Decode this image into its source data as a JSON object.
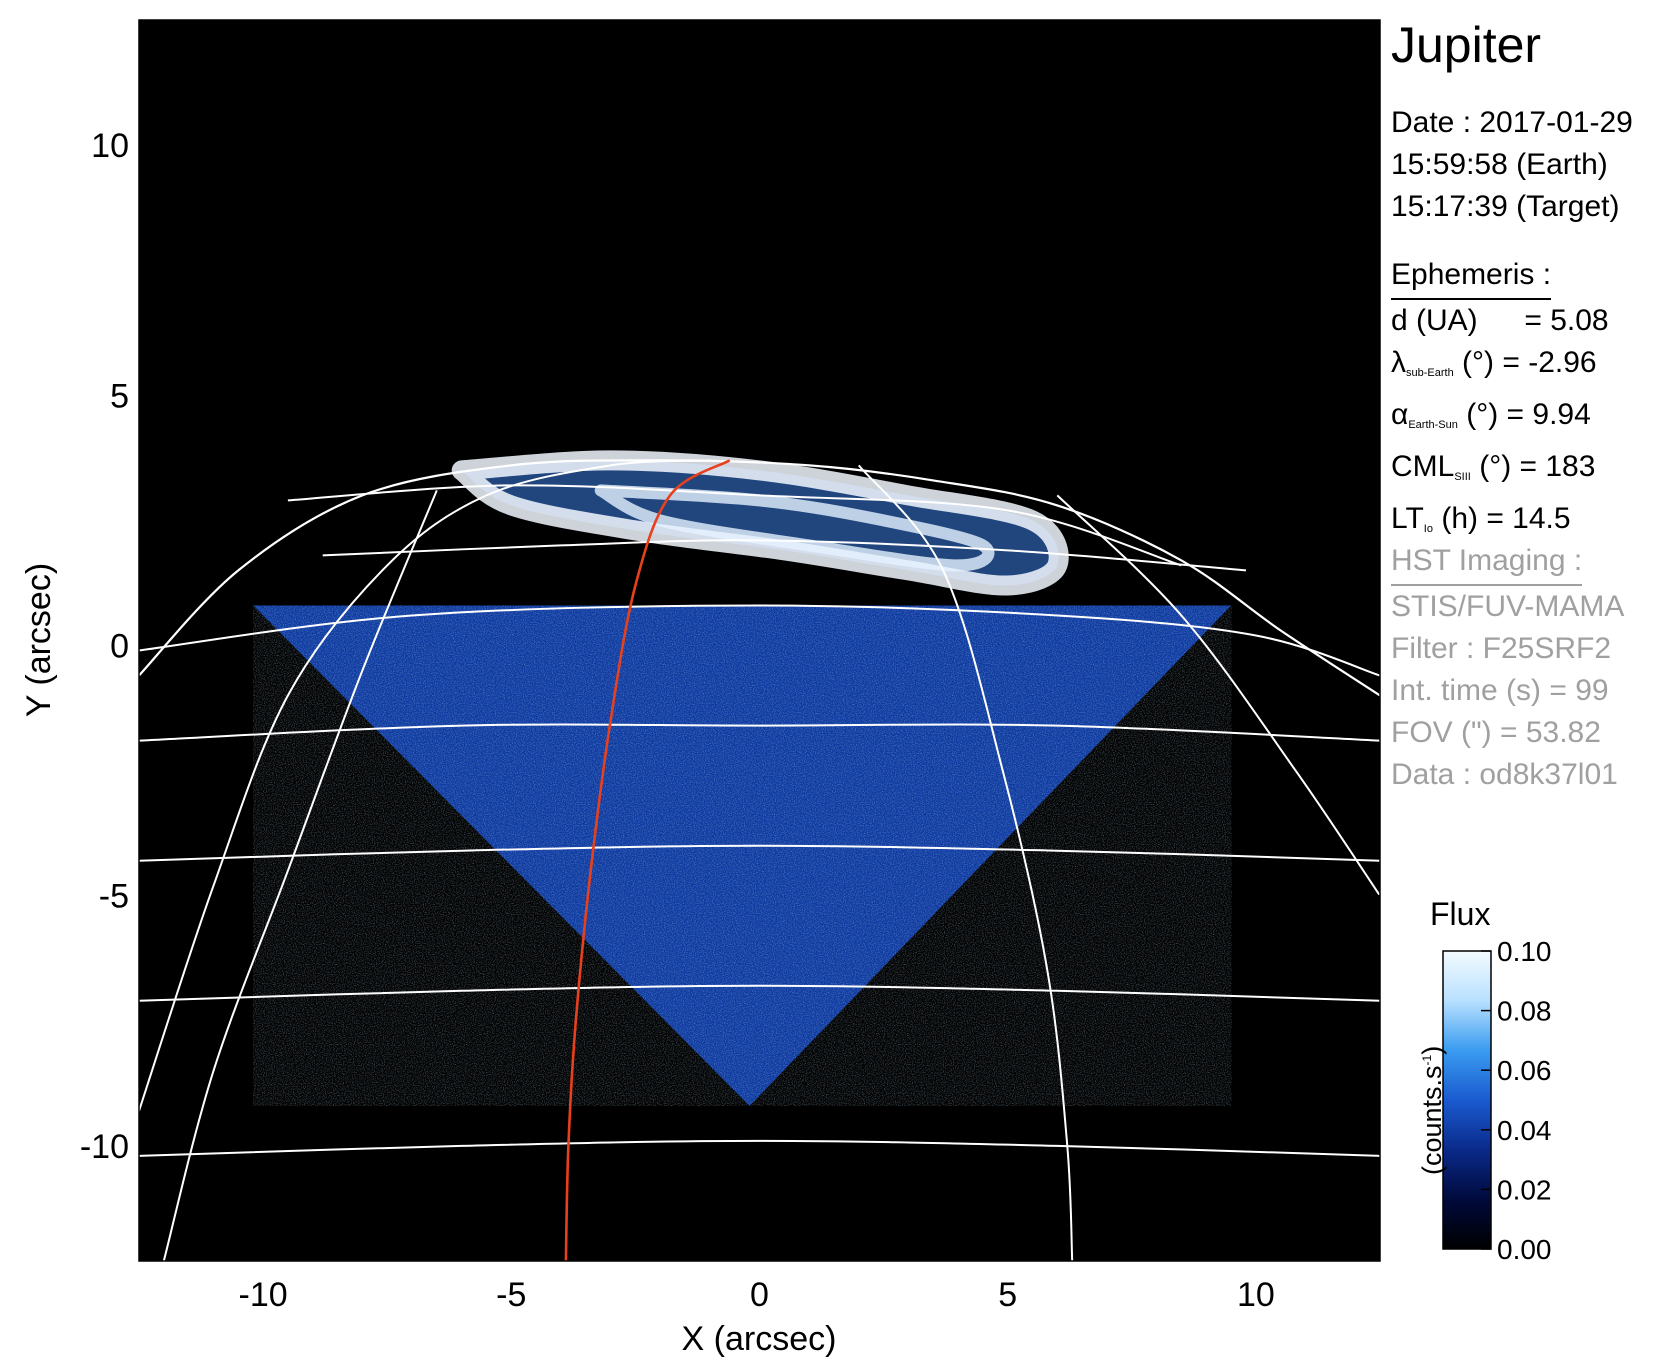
{
  "title": "Jupiter",
  "date_block": {
    "date_line": "Date : 2017-01-29",
    "earth_line": "15:59:58 (Earth)",
    "target_line": "15:17:39 (Target)"
  },
  "ephemeris": {
    "heading": "Ephemeris :",
    "d_label": "d (UA)",
    "d_value": "= 5.08",
    "lat_symbol": "λ",
    "lat_sub": "sub-Earth",
    "lat_value": "(°) = -2.96",
    "phase_symbol": "α",
    "phase_sub": "Earth-Sun",
    "phase_value": "(°) = 9.94",
    "cml_symbol": "CML",
    "cml_sub": "SIII",
    "cml_value": "(°) = 183",
    "lt_symbol": "LT",
    "lt_sub": "Io",
    "lt_value": "(h) = 14.5"
  },
  "hst": {
    "heading": "HST Imaging :",
    "instrument": "STIS/FUV-MAMA",
    "filter": "Filter : F25SRF2",
    "int_time": "Int. time (s) = 99",
    "fov": "FOV (\") = 53.82",
    "data": "Data : od8k37l01"
  },
  "colorbar": {
    "title": "Flux",
    "unit": "(counts.s",
    "unit_sup": "-1",
    "unit_close": ")",
    "min": 0,
    "max": 0.1,
    "ticks": [
      "0.00",
      "0.02",
      "0.04",
      "0.06",
      "0.08",
      "0.10"
    ],
    "colors": [
      "#000000",
      "#000a3c",
      "#0a2a8a",
      "#1a5bd0",
      "#3a9cf0",
      "#b8e0ff",
      "#f4fbff"
    ]
  },
  "chart_data": {
    "type": "heatmap",
    "xlabel": "X (arcsec)",
    "ylabel": "Y (arcsec)",
    "xlim": [
      -12.5,
      12.5
    ],
    "ylim": [
      -12.3,
      12.5
    ],
    "x_ticks": [
      "-10",
      "-5",
      "0",
      "5",
      "10"
    ],
    "x_tick_values": [
      -10,
      -5,
      0,
      5,
      10
    ],
    "y_ticks": [
      "10",
      "5",
      "0",
      "-5",
      "-10"
    ],
    "y_tick_values": [
      10,
      5,
      0,
      -5,
      -10
    ],
    "background_color": "#000000",
    "grid_color": "#ffffff",
    "meridian_color": "#e8401c",
    "fov_vertices": [
      [
        -10.2,
        0.8
      ],
      [
        9.5,
        0.8
      ],
      [
        -0.2,
        -9.2
      ]
    ],
    "limb_points": [
      [
        -12.5,
        -0.6
      ],
      [
        -10.5,
        1.5
      ],
      [
        -8.0,
        3.0
      ],
      [
        -5.0,
        3.6
      ],
      [
        -2.0,
        3.7
      ],
      [
        1.0,
        3.6
      ],
      [
        3.5,
        3.3
      ],
      [
        6.0,
        2.8
      ],
      [
        8.5,
        1.7
      ],
      [
        10.5,
        0.3
      ],
      [
        12.5,
        -1.0
      ]
    ],
    "parallels": [
      [
        [
          -12.5,
          -0.1
        ],
        [
          -7.0,
          0.6
        ],
        [
          0.0,
          0.8
        ],
        [
          6.0,
          0.6
        ],
        [
          10.0,
          0.2
        ],
        [
          12.5,
          -0.6
        ]
      ],
      [
        [
          -12.5,
          -1.9
        ],
        [
          -6.0,
          -1.6
        ],
        [
          0.0,
          -1.6
        ],
        [
          6.0,
          -1.6
        ],
        [
          12.5,
          -1.9
        ]
      ],
      [
        [
          -12.5,
          -4.3
        ],
        [
          -6.0,
          -4.1
        ],
        [
          0.0,
          -4.0
        ],
        [
          6.0,
          -4.1
        ],
        [
          12.5,
          -4.3
        ]
      ],
      [
        [
          -12.5,
          -7.1
        ],
        [
          -6.0,
          -6.9
        ],
        [
          0.0,
          -6.8
        ],
        [
          6.0,
          -6.9
        ],
        [
          12.5,
          -7.1
        ]
      ],
      [
        [
          -12.5,
          -10.2
        ],
        [
          -6.0,
          -10.0
        ],
        [
          0.0,
          -9.9
        ],
        [
          6.0,
          -10.0
        ],
        [
          12.5,
          -10.2
        ]
      ],
      [
        [
          -9.5,
          2.9
        ],
        [
          -5.0,
          3.2
        ],
        [
          0.0,
          3.0
        ],
        [
          5.0,
          2.7
        ],
        [
          8.5,
          1.6
        ]
      ],
      [
        [
          -8.8,
          1.8
        ],
        [
          -4.0,
          2.0
        ],
        [
          0.0,
          2.1
        ],
        [
          5.0,
          1.9
        ],
        [
          9.8,
          1.5
        ]
      ]
    ],
    "meridians": [
      [
        [
          -12.5,
          -9.3
        ],
        [
          -11.0,
          -4.8
        ],
        [
          -9.5,
          -1.0
        ],
        [
          -7.5,
          1.6
        ],
        [
          -5.5,
          3.0
        ],
        [
          -3.0,
          3.6
        ],
        [
          -1.0,
          3.7
        ]
      ],
      [
        [
          -6.5,
          3.1
        ],
        [
          -8.0,
          -0.5
        ],
        [
          -9.5,
          -4.5
        ],
        [
          -11.0,
          -8.5
        ],
        [
          -12.0,
          -12.3
        ]
      ],
      [
        [
          2.0,
          3.6
        ],
        [
          3.7,
          1.5
        ],
        [
          4.9,
          -2.5
        ],
        [
          5.8,
          -6.5
        ],
        [
          6.2,
          -10.0
        ],
        [
          6.3,
          -12.3
        ]
      ],
      [
        [
          6.0,
          3.0
        ],
        [
          8.5,
          0.6
        ],
        [
          10.8,
          -2.5
        ],
        [
          12.5,
          -5.0
        ]
      ]
    ],
    "central_meridian": [
      [
        -0.6,
        3.7
      ],
      [
        -1.8,
        3.0
      ],
      [
        -2.5,
        1.2
      ],
      [
        -3.0,
        -1.5
      ],
      [
        -3.4,
        -4.5
      ],
      [
        -3.7,
        -7.5
      ],
      [
        -3.85,
        -10.0
      ],
      [
        -3.9,
        -12.3
      ]
    ],
    "auroral_oval": [
      [
        -6.0,
        3.5
      ],
      [
        -3.0,
        3.7
      ],
      [
        0.0,
        3.5
      ],
      [
        3.0,
        3.0
      ],
      [
        5.5,
        2.5
      ],
      [
        6.0,
        1.6
      ],
      [
        5.0,
        1.2
      ],
      [
        3.0,
        1.5
      ],
      [
        0.5,
        1.9
      ],
      [
        -2.5,
        2.3
      ],
      [
        -5.0,
        2.8
      ],
      [
        -6.0,
        3.5
      ]
    ],
    "inner_arc": [
      [
        -3.2,
        3.1
      ],
      [
        0.0,
        2.9
      ],
      [
        2.5,
        2.5
      ],
      [
        4.5,
        2.0
      ],
      [
        4.0,
        1.6
      ],
      [
        1.0,
        2.0
      ],
      [
        -2.0,
        2.5
      ],
      [
        -3.2,
        3.1
      ]
    ]
  }
}
